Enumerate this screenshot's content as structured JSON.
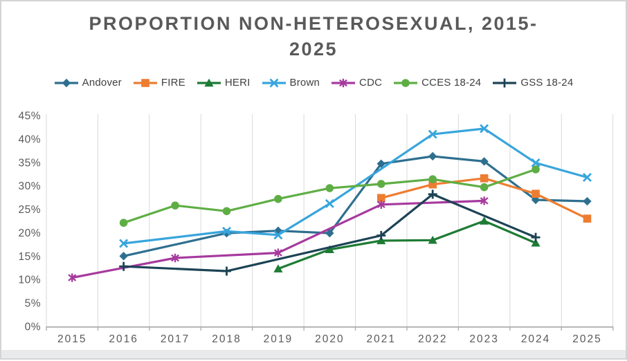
{
  "window": {
    "background": "#ffffff",
    "frame_border_color": "#d2d4d6",
    "bottom_strip_color": "#e8eaec"
  },
  "chart_data": {
    "type": "line",
    "title": "PROPORTION NON-HETEROSEXUAL, 2015-2025",
    "title_lines": [
      "PROPORTION NON-HETEROSEXUAL, 2015-",
      "2025"
    ],
    "title_color": "#595959",
    "x": [
      "2015",
      "2016",
      "2017",
      "2018",
      "2019",
      "2020",
      "2021",
      "2022",
      "2023",
      "2024",
      "2025"
    ],
    "ylim": [
      0,
      45
    ],
    "ytick_step": 5,
    "ytick_labels": [
      "0%",
      "5%",
      "10%",
      "15%",
      "20%",
      "25%",
      "30%",
      "35%",
      "40%",
      "45%"
    ],
    "grid": "vertical-only",
    "gridline_color": "#d9d9d9",
    "axis_line_color": "#afafaf",
    "tick_label_color": "#595959",
    "legend_position": "top",
    "series": [
      {
        "name": "Andover",
        "color": "#2E6F8F",
        "marker": "diamond",
        "values": [
          null,
          15,
          null,
          19.9,
          20.4,
          19.9,
          34.7,
          36.3,
          35.2,
          27,
          26.7
        ]
      },
      {
        "name": "FIRE",
        "color": "#ED7D31",
        "marker": "square",
        "values": [
          null,
          null,
          null,
          null,
          null,
          null,
          27.4,
          30.3,
          31.6,
          28.3,
          23
        ]
      },
      {
        "name": "HERI",
        "color": "#1E7B34",
        "marker": "triangle",
        "values": [
          null,
          null,
          null,
          null,
          12.3,
          16.4,
          18.3,
          18.4,
          22.5,
          17.8,
          null
        ]
      },
      {
        "name": "Brown",
        "color": "#38A5DC",
        "marker": "x",
        "values": [
          null,
          17.7,
          null,
          20.3,
          19.5,
          26.2,
          null,
          41,
          42.2,
          34.9,
          31.8
        ]
      },
      {
        "name": "CDC",
        "color": "#A63A9E",
        "marker": "asterisk",
        "values": [
          10.4,
          null,
          14.6,
          null,
          15.7,
          null,
          26,
          null,
          26.8,
          null,
          null
        ]
      },
      {
        "name": "CCES 18-24",
        "color": "#5FAE45",
        "marker": "circle",
        "values": [
          null,
          22.1,
          25.8,
          24.6,
          27.2,
          29.5,
          30.4,
          31.4,
          29.7,
          33.5,
          null
        ]
      },
      {
        "name": "GSS 18-24",
        "color": "#1C4355",
        "marker": "plus",
        "values": [
          null,
          12.8,
          null,
          11.8,
          null,
          null,
          19.4,
          28.2,
          null,
          19,
          null
        ]
      }
    ]
  }
}
